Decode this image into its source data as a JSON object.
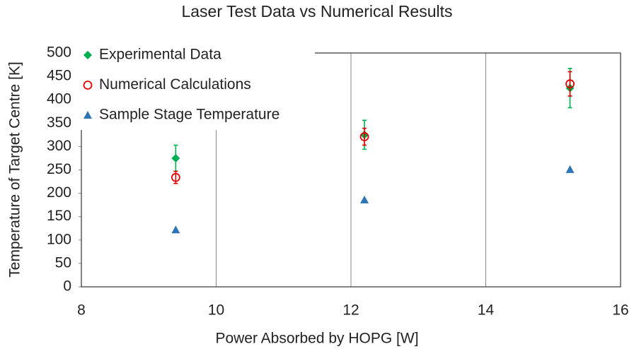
{
  "chart_data": {
    "type": "scatter",
    "title": "Laser Test Data vs Numerical Results",
    "xlabel": "Power Absorbed by HOPG [W]",
    "ylabel": "Temperature of Target Centre [K]",
    "xlim": [
      8,
      16
    ],
    "xticks": [
      8,
      10,
      12,
      14,
      16
    ],
    "ylim": [
      0,
      500
    ],
    "yticks": [
      0,
      50,
      100,
      150,
      200,
      250,
      300,
      350,
      400,
      450,
      500
    ],
    "grid": "x",
    "legend": "upper left",
    "series": [
      {
        "name": "Experimental Data",
        "color": "#00b050",
        "marker": "diamond",
        "x": [
          9.4,
          12.2,
          15.25
        ],
        "values": [
          275,
          325,
          425
        ],
        "errors": [
          28,
          31,
          42
        ]
      },
      {
        "name": "Numerical Calculations",
        "color": "#e00000",
        "marker": "open-circle",
        "x": [
          9.4,
          12.2,
          15.25
        ],
        "values": [
          234,
          321,
          434
        ],
        "errors": [
          13,
          18,
          26
        ]
      },
      {
        "name": "Sample Stage Temperature",
        "color": "#2e75b6",
        "marker": "triangle",
        "x": [
          9.4,
          12.2,
          15.25
        ],
        "values": [
          122,
          186,
          251
        ]
      }
    ]
  }
}
